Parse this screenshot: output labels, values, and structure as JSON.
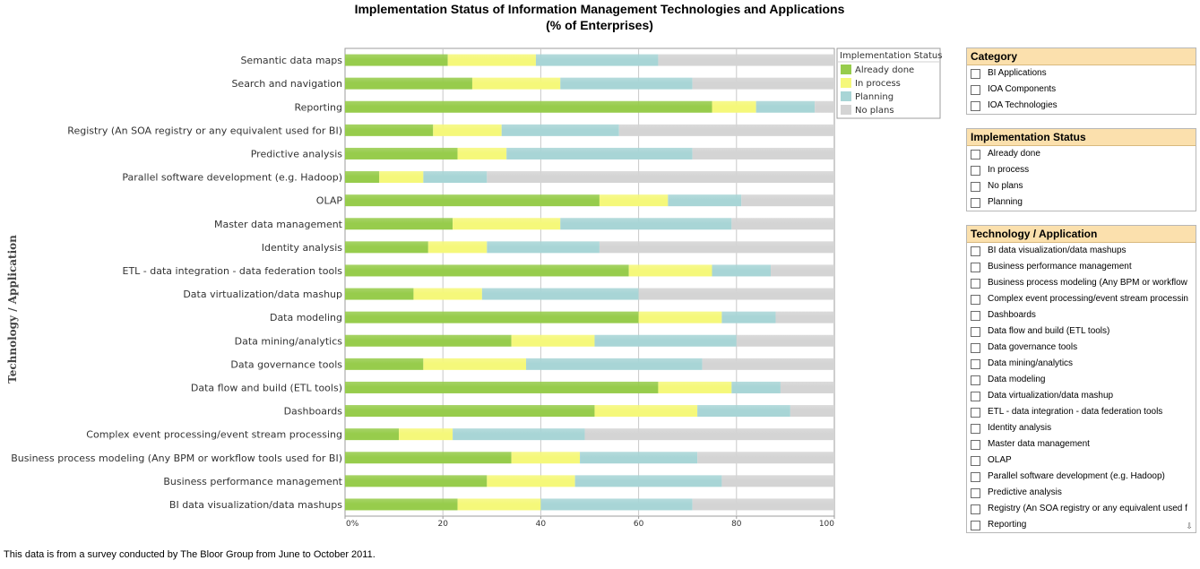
{
  "page": {
    "title_line1": "Implementation Status of Information Management Technologies and Applications",
    "title_line2": "(% of Enterprises)",
    "footnote": "This data is from a survey conducted by The Bloor Group from June to October 2011."
  },
  "chart_data": {
    "type": "bar",
    "orientation": "horizontal",
    "stacked": true,
    "title": "Implementation Status of Information Management Technologies and Applications (% of Enterprises)",
    "ylabel": "Technology / Application",
    "xlabel": "",
    "xlim": [
      0,
      100
    ],
    "x_ticks": [
      "0%",
      "20",
      "40",
      "60",
      "80",
      "100"
    ],
    "x_tick_values": [
      0,
      20,
      40,
      60,
      80,
      100
    ],
    "grid": true,
    "legend_title": "Implementation Status",
    "legend_position": "top-right",
    "categories": [
      "Semantic data maps",
      "Search and navigation",
      "Reporting",
      "Registry (An SOA registry or any equivalent used for BI)",
      "Predictive analysis",
      "Parallel software development (e.g. Hadoop)",
      "OLAP",
      "Master data management",
      "Identity analysis",
      "ETL - data integration - data federation tools",
      "Data virtualization/data mashup",
      "Data modeling",
      "Data mining/analytics",
      "Data governance tools",
      "Data flow and build (ETL tools)",
      "Dashboards",
      "Complex event processing/event stream processing",
      "Business process modeling (Any BPM or workflow tools used for BI)",
      "Business performance management",
      "BI data visualization/data mashups"
    ],
    "series": [
      {
        "name": "Already  done",
        "color": "#97cc4c",
        "values": [
          21,
          26,
          75,
          18,
          23,
          7,
          52,
          22,
          17,
          58,
          14,
          60,
          34,
          16,
          64,
          51,
          11,
          34,
          29,
          23
        ]
      },
      {
        "name": "In process",
        "color": "#f5f87a",
        "values": [
          18,
          18,
          9,
          14,
          10,
          9,
          14,
          22,
          12,
          17,
          14,
          17,
          17,
          21,
          15,
          21,
          11,
          14,
          18,
          17
        ]
      },
      {
        "name": "Planning",
        "color": "#a8d5d6",
        "values": [
          25,
          27,
          12,
          24,
          38,
          13,
          15,
          35,
          23,
          12,
          32,
          11,
          29,
          36,
          10,
          19,
          27,
          24,
          30,
          31
        ]
      },
      {
        "name": "No plans",
        "color": "#d4d4d4",
        "values": [
          36,
          29,
          4,
          44,
          29,
          71,
          19,
          21,
          48,
          13,
          40,
          12,
          20,
          27,
          11,
          9,
          51,
          28,
          23,
          29
        ]
      }
    ]
  },
  "filters": {
    "category": {
      "header": "Category",
      "items": [
        "BI Applications",
        "IOA Components",
        "IOA Technologies"
      ]
    },
    "status": {
      "header": "Implementation Status",
      "items": [
        "Already  done",
        "In process",
        "No plans",
        "Planning"
      ]
    },
    "technology": {
      "header": "Technology / Application",
      "scroll_icon": "scroll-down-icon",
      "items": [
        "BI data visualization/data mashups",
        "Business performance management",
        "Business process modeling (Any BPM or workflow",
        "Complex event processing/event stream processin",
        "Dashboards",
        "Data flow and build (ETL tools)",
        "Data governance tools",
        "Data mining/analytics",
        "Data modeling",
        "Data virtualization/data mashup",
        "ETL - data integration - data federation tools",
        "Identity analysis",
        "Master data management",
        "OLAP",
        "Parallel software development (e.g. Hadoop)",
        "Predictive analysis",
        "Registry (An SOA registry or any equivalent used f",
        "Reporting"
      ]
    }
  }
}
